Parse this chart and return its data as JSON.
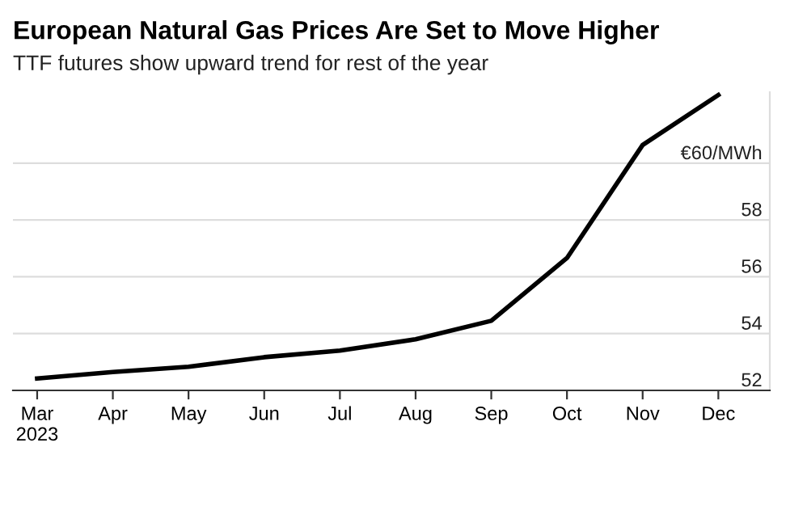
{
  "chart_data": {
    "type": "line",
    "title": "European Natural Gas Prices Are Set to Move Higher",
    "subtitle": "TTF futures show upward trend for rest of the year",
    "categories": [
      "Mar\n2023",
      "Apr",
      "May",
      "Jun",
      "Jul",
      "Aug",
      "Sep",
      "Oct",
      "Nov",
      "Dec"
    ],
    "series": [
      {
        "color": "#000000",
        "values": [
          52.42,
          52.65,
          52.83,
          53.17,
          53.4,
          53.8,
          54.45,
          56.66,
          60.64,
          62.4
        ]
      }
    ],
    "ylim": [
      52,
      62.5
    ],
    "yticks": [
      52,
      54,
      56,
      58,
      {
        "value": 60,
        "label": "€60/MWh"
      }
    ],
    "grid": "y",
    "legend": false,
    "marker": "none",
    "line_style": "solid"
  }
}
